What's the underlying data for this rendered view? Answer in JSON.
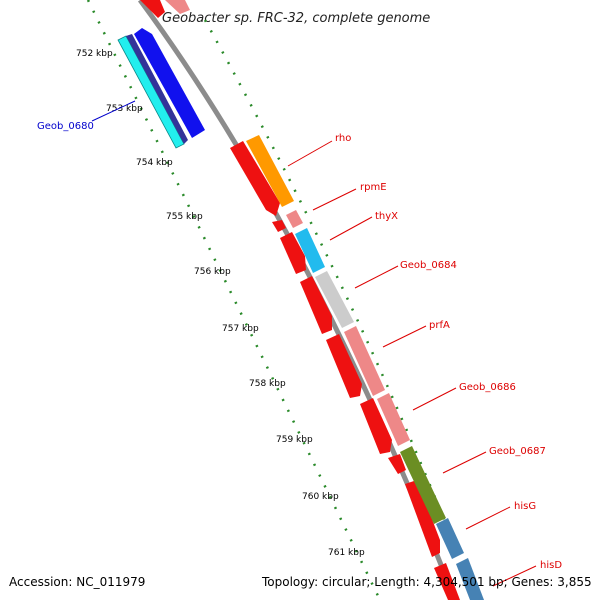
{
  "title": "Geobacter sp. FRC-32, complete genome",
  "footer": {
    "accession": "Accession: NC_011979",
    "topology": "Topology: circular; Length: 4,304,501 bp; Genes: 3,855"
  },
  "ruler_labels": [
    "752 kbp",
    "753 kbp",
    "754 kbp",
    "755 kbp",
    "756 kbp",
    "757 kbp",
    "758 kbp",
    "759 kbp",
    "760 kbp",
    "761 kbp"
  ],
  "gene_labels": [
    {
      "text": "Geob_0680",
      "color": "#0000cc"
    },
    {
      "text": "rho",
      "color": "#dd0000"
    },
    {
      "text": "rpmE",
      "color": "#dd0000"
    },
    {
      "text": "thyX",
      "color": "#dd0000"
    },
    {
      "text": "Geob_0684",
      "color": "#dd0000"
    },
    {
      "text": "prfA",
      "color": "#dd0000"
    },
    {
      "text": "Geob_0686",
      "color": "#dd0000"
    },
    {
      "text": "Geob_0687",
      "color": "#dd0000"
    },
    {
      "text": "hisG",
      "color": "#dd0000"
    },
    {
      "text": "hisD",
      "color": "#dd0000"
    }
  ],
  "colors": {
    "backbone": "#8c8c8c",
    "tick_green": "#2a8a2a",
    "forward_red": "#ee1111",
    "cyan": "#22eeee",
    "blue": "#1111ee",
    "navy": "#333399",
    "orange": "#ff9900",
    "pink": "#ee8888",
    "sky": "#22bbee",
    "grey": "#cccccc",
    "olive": "#6b8e23",
    "steel": "#4682b4"
  }
}
